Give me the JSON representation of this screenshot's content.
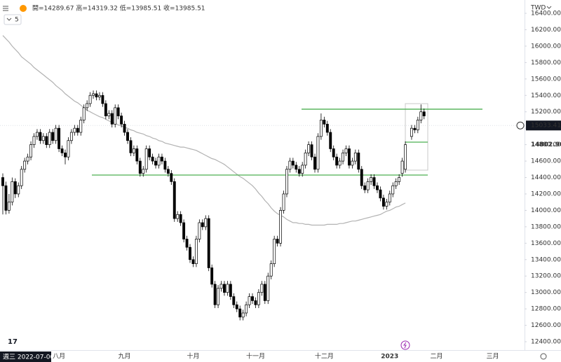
{
  "header": {
    "ohlc_text": "開=14289.67 高=14319.32 低=13985.51 收=13985.51",
    "interval": "5"
  },
  "chart_data": {
    "type": "candlestick",
    "currency": "TWD",
    "crosshair_date": "週三 2022-07-06",
    "up_color": "#ffffff",
    "down_color": "#000000",
    "ylim": [
      12298,
      16562
    ],
    "yticks": [
      {
        "value": 12400,
        "label": "12400.00"
      },
      {
        "value": 12600,
        "label": "12600.00"
      },
      {
        "value": 12800,
        "label": "12800.00"
      },
      {
        "value": 13000,
        "label": "13000.00"
      },
      {
        "value": 13200,
        "label": "13200.00"
      },
      {
        "value": 13400,
        "label": "13400.00"
      },
      {
        "value": 13600,
        "label": "13600.00"
      },
      {
        "value": 13800,
        "label": "13800.00"
      },
      {
        "value": 14000,
        "label": "14000.00"
      },
      {
        "value": 14200,
        "label": "14200.00"
      },
      {
        "value": 14400,
        "label": "14400.00"
      },
      {
        "value": 14600,
        "label": "14600.00"
      },
      {
        "value": 14800,
        "label": "14800.00"
      },
      {
        "value": 15000,
        "label": "15000.00"
      },
      {
        "value": 15200,
        "label": "15200.00"
      },
      {
        "value": 15400,
        "label": "15400.00"
      },
      {
        "value": 15600,
        "label": "15600.00"
      },
      {
        "value": 15800,
        "label": "15800.00"
      },
      {
        "value": 16000,
        "label": "16000.00"
      },
      {
        "value": 16200,
        "label": "16200.00"
      },
      {
        "value": 16400,
        "label": "16400.00"
      }
    ],
    "grid": false,
    "price_labels": [
      15033.41,
      14802.96
    ],
    "horizontal_lines": [
      {
        "value": 15232,
        "color": "#4caf50"
      },
      {
        "value": 14430,
        "color": "#4caf50"
      },
      {
        "value": 14831,
        "color": "#4caf50"
      }
    ],
    "categories": [
      null,
      null,
      null,
      null,
      null,
      null,
      null,
      null,
      null,
      null,
      null,
      null,
      null,
      null,
      null,
      null,
      null,
      null,
      "八月",
      null,
      null,
      null,
      null,
      null,
      null,
      null,
      null,
      null,
      null,
      null,
      null,
      null,
      null,
      null,
      null,
      null,
      null,
      null,
      null,
      "九月",
      null,
      null,
      null,
      null,
      null,
      null,
      null,
      null,
      null,
      null,
      null,
      null,
      null,
      null,
      null,
      null,
      null,
      null,
      null,
      null,
      null,
      "十月",
      null,
      null,
      null,
      null,
      null,
      null,
      null,
      null,
      null,
      null,
      null,
      null,
      null,
      null,
      null,
      null,
      null,
      null,
      null,
      "十一月",
      null,
      null,
      null,
      null,
      null,
      null,
      null,
      null,
      null,
      null,
      null,
      null,
      null,
      null,
      null,
      null,
      null,
      null,
      null,
      null,
      null,
      "十二月",
      null,
      null,
      null,
      null,
      null,
      null,
      null,
      null,
      null,
      null,
      null,
      null,
      null,
      null,
      null,
      null,
      null,
      null,
      null,
      null,
      "2023",
      null,
      null,
      null,
      null,
      null,
      null,
      null,
      null,
      null,
      null,
      null,
      null,
      null,
      null,
      "二月",
      null,
      null,
      null,
      null,
      null,
      null,
      null,
      null,
      null,
      null,
      null,
      null,
      null,
      null,
      null,
      null,
      null,
      "三月",
      null,
      null,
      null,
      null,
      null,
      null,
      null
    ],
    "ohlc": [
      [
        14400,
        14450,
        13950,
        14300
      ],
      [
        14300,
        14350,
        13950,
        14000
      ],
      [
        14000,
        14200,
        13960,
        14100
      ],
      [
        14100,
        14400,
        14060,
        14350
      ],
      [
        14350,
        14390,
        14150,
        14200
      ],
      [
        14200,
        14340,
        14160,
        14300
      ],
      [
        14300,
        14540,
        14260,
        14500
      ],
      [
        14500,
        14640,
        14460,
        14600
      ],
      [
        14600,
        14690,
        14560,
        14650
      ],
      [
        14650,
        14840,
        14610,
        14800
      ],
      [
        14800,
        14940,
        14760,
        14900
      ],
      [
        14900,
        14990,
        14860,
        14950
      ],
      [
        14950,
        14990,
        14810,
        14850
      ],
      [
        14850,
        14940,
        14810,
        14900
      ],
      [
        14900,
        14940,
        14760,
        14800
      ],
      [
        14800,
        14990,
        14760,
        14950
      ],
      [
        14950,
        14990,
        14810,
        14850
      ],
      [
        14850,
        15040,
        14810,
        15000
      ],
      [
        15000,
        15040,
        14710,
        14750
      ],
      [
        14750,
        14790,
        14660,
        14700
      ],
      [
        14700,
        14740,
        14560,
        14650
      ],
      [
        14650,
        14890,
        14610,
        14850
      ],
      [
        14850,
        14990,
        14810,
        14950
      ],
      [
        14950,
        15040,
        14910,
        15000
      ],
      [
        15000,
        15040,
        14910,
        14950
      ],
      [
        14950,
        15140,
        14910,
        15100
      ],
      [
        15100,
        15290,
        15060,
        15250
      ],
      [
        15250,
        15340,
        15210,
        15300
      ],
      [
        15300,
        15440,
        15260,
        15400
      ],
      [
        15400,
        15460,
        15360,
        15420
      ],
      [
        15420,
        15460,
        15340,
        15380
      ],
      [
        15380,
        15440,
        15340,
        15400
      ],
      [
        15400,
        15440,
        15260,
        15300
      ],
      [
        15300,
        15340,
        15110,
        15150
      ],
      [
        15150,
        15220,
        15110,
        15180
      ],
      [
        15180,
        15220,
        15010,
        15050
      ],
      [
        15050,
        15290,
        15010,
        15250
      ],
      [
        15250,
        15290,
        15110,
        15150
      ],
      [
        15150,
        15190,
        15010,
        15050
      ],
      [
        15050,
        15090,
        14910,
        14950
      ],
      [
        14950,
        14990,
        14810,
        14850
      ],
      [
        14850,
        14890,
        14660,
        14700
      ],
      [
        14700,
        14790,
        14660,
        14750
      ],
      [
        14750,
        14790,
        14560,
        14600
      ],
      [
        14600,
        14640,
        14410,
        14450
      ],
      [
        14450,
        14540,
        14410,
        14500
      ],
      [
        14500,
        14790,
        14460,
        14750
      ],
      [
        14750,
        14790,
        14610,
        14650
      ],
      [
        14650,
        14690,
        14560,
        14600
      ],
      [
        14600,
        14640,
        14510,
        14550
      ],
      [
        14550,
        14690,
        14510,
        14650
      ],
      [
        14650,
        14690,
        14560,
        14600
      ],
      [
        14600,
        14640,
        14460,
        14500
      ],
      [
        14500,
        14540,
        14410,
        14450
      ],
      [
        14450,
        14490,
        14310,
        14350
      ],
      [
        14350,
        14390,
        13860,
        13900
      ],
      [
        13900,
        13990,
        13860,
        13950
      ],
      [
        13950,
        13990,
        13810,
        13850
      ],
      [
        13850,
        13890,
        13610,
        13650
      ],
      [
        13650,
        13690,
        13510,
        13550
      ],
      [
        13550,
        13590,
        13360,
        13400
      ],
      [
        13400,
        13440,
        13310,
        13350
      ],
      [
        13350,
        13690,
        13310,
        13650
      ],
      [
        13650,
        13890,
        13610,
        13850
      ],
      [
        13850,
        13890,
        13760,
        13800
      ],
      [
        13800,
        13940,
        13760,
        13900
      ],
      [
        13900,
        13940,
        13260,
        13300
      ],
      [
        13300,
        13340,
        13060,
        13100
      ],
      [
        13100,
        13140,
        12810,
        12850
      ],
      [
        12850,
        13090,
        12810,
        13050
      ],
      [
        13050,
        13140,
        13010,
        13100
      ],
      [
        13100,
        13140,
        12960,
        13000
      ],
      [
        13000,
        13140,
        12960,
        13100
      ],
      [
        13100,
        13140,
        12910,
        12950
      ],
      [
        12950,
        12990,
        12810,
        12850
      ],
      [
        12850,
        12890,
        12760,
        12800
      ],
      [
        12800,
        12840,
        12660,
        12700
      ],
      [
        12700,
        12790,
        12660,
        12750
      ],
      [
        12750,
        12890,
        12710,
        12850
      ],
      [
        12850,
        12990,
        12810,
        12950
      ],
      [
        12950,
        12990,
        12860,
        12900
      ],
      [
        12900,
        12940,
        12810,
        12850
      ],
      [
        12850,
        13040,
        12810,
        13000
      ],
      [
        13000,
        13140,
        12960,
        13100
      ],
      [
        13100,
        13140,
        12860,
        12900
      ],
      [
        12900,
        13240,
        12860,
        13200
      ],
      [
        13200,
        13390,
        13160,
        13350
      ],
      [
        13350,
        13690,
        13310,
        13650
      ],
      [
        13650,
        13690,
        13560,
        13600
      ],
      [
        13600,
        14040,
        13560,
        14000
      ],
      [
        14000,
        14240,
        13960,
        14200
      ],
      [
        14200,
        14540,
        14160,
        14500
      ],
      [
        14500,
        14640,
        14460,
        14600
      ],
      [
        14600,
        14640,
        14510,
        14550
      ],
      [
        14550,
        14590,
        14460,
        14500
      ],
      [
        14500,
        14540,
        14410,
        14450
      ],
      [
        14450,
        14590,
        14410,
        14550
      ],
      [
        14550,
        14740,
        14510,
        14700
      ],
      [
        14700,
        14840,
        14660,
        14800
      ],
      [
        14800,
        14840,
        14610,
        14650
      ],
      [
        14650,
        14690,
        14460,
        14500
      ],
      [
        14500,
        14940,
        14460,
        14900
      ],
      [
        14900,
        15180,
        14860,
        15100
      ],
      [
        15100,
        15140,
        15010,
        15050
      ],
      [
        15050,
        15090,
        14910,
        14950
      ],
      [
        14950,
        14990,
        14710,
        14750
      ],
      [
        14750,
        14790,
        14610,
        14650
      ],
      [
        14650,
        14690,
        14510,
        14550
      ],
      [
        14550,
        14640,
        14510,
        14600
      ],
      [
        14600,
        14740,
        14560,
        14700
      ],
      [
        14700,
        14790,
        14660,
        14750
      ],
      [
        14750,
        14790,
        14510,
        14550
      ],
      [
        14550,
        14640,
        14510,
        14600
      ],
      [
        14600,
        14740,
        14560,
        14700
      ],
      [
        14700,
        14740,
        14460,
        14500
      ],
      [
        14500,
        14540,
        14260,
        14300
      ],
      [
        14300,
        14340,
        14210,
        14250
      ],
      [
        14250,
        14390,
        14210,
        14350
      ],
      [
        14350,
        14440,
        14310,
        14400
      ],
      [
        14400,
        14440,
        14260,
        14300
      ],
      [
        14300,
        14340,
        14210,
        14250
      ],
      [
        14250,
        14290,
        14110,
        14150
      ],
      [
        14150,
        14190,
        14010,
        14050
      ],
      [
        14050,
        14140,
        14010,
        14100
      ],
      [
        14100,
        14240,
        14060,
        14200
      ],
      [
        14200,
        14340,
        14160,
        14300
      ],
      [
        14300,
        14390,
        14260,
        14350
      ],
      [
        14350,
        14440,
        14310,
        14400
      ],
      [
        14450,
        14640,
        14410,
        14600
      ],
      [
        14500,
        14840,
        14460,
        14800
      ],
      null,
      [
        14900,
        15040,
        14860,
        15000
      ],
      [
        15000,
        15040,
        14940,
        14980
      ],
      [
        14980,
        15140,
        14940,
        15100
      ],
      [
        15100,
        15290,
        15060,
        15200
      ],
      [
        15200,
        15240,
        15110,
        15150
      ],
      null,
      null,
      null,
      null,
      null,
      null,
      null,
      null,
      null,
      null,
      null,
      null,
      null,
      null,
      null,
      null,
      null,
      null,
      null,
      null,
      null,
      null,
      null,
      null,
      null,
      null,
      null,
      null,
      null
    ],
    "ma": {
      "color": "#b2b2b2",
      "values": [
        16130,
        16090,
        16050,
        16000,
        15960,
        15920,
        15870,
        15840,
        15810,
        15780,
        15740,
        15710,
        15680,
        15650,
        15620,
        15590,
        15560,
        15520,
        15490,
        15460,
        15420,
        15390,
        15360,
        15330,
        15310,
        15280,
        15250,
        15220,
        15200,
        15180,
        15160,
        15140,
        15130,
        15110,
        15090,
        15070,
        15060,
        15040,
        15030,
        15010,
        15000,
        14980,
        14970,
        14950,
        14940,
        14930,
        14910,
        14900,
        14880,
        14870,
        14850,
        14840,
        14820,
        14810,
        14800,
        14790,
        14780,
        14770,
        14770,
        14760,
        14750,
        14740,
        14730,
        14710,
        14690,
        14670,
        14650,
        14630,
        14620,
        14600,
        14580,
        14560,
        14530,
        14500,
        14470,
        14440,
        14410,
        14390,
        14360,
        14330,
        14300,
        14260,
        14210,
        14170,
        14120,
        14080,
        14030,
        13990,
        13960,
        13940,
        13920,
        13890,
        13870,
        13850,
        13850,
        13840,
        13840,
        13830,
        13830,
        13820,
        13820,
        13820,
        13820,
        13820,
        13830,
        13830,
        13830,
        13830,
        13840,
        13840,
        13850,
        13860,
        13870,
        13870,
        13880,
        13890,
        13900,
        13910,
        13920,
        13930,
        13940,
        13950,
        13970,
        13990,
        14000,
        14020,
        14040,
        14050,
        14070,
        14090,
        null,
        null,
        null,
        null,
        null,
        null,
        null,
        null,
        null,
        null,
        null,
        null,
        null,
        null,
        null,
        null,
        null,
        null,
        null,
        null,
        null,
        null,
        null,
        null,
        null,
        null,
        null,
        null,
        null,
        null,
        null,
        null,
        null,
        null,
        null
      ]
    }
  }
}
